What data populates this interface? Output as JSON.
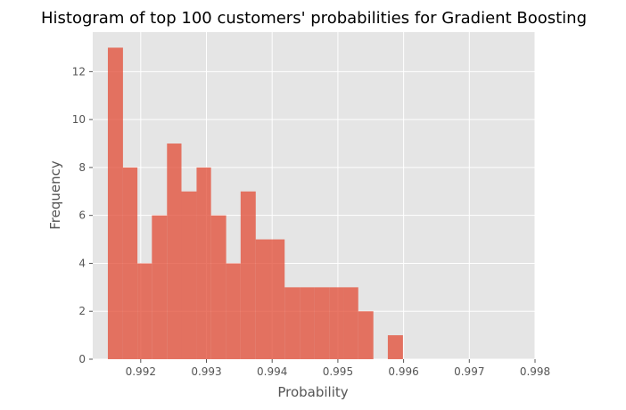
{
  "chart_data": {
    "type": "bar",
    "title": "Histogram of top 100 customers' probabilities for Gradient Boosting",
    "xlabel": "Probability",
    "ylabel": "Frequency",
    "bin_edges": [
      0.9915,
      0.99173,
      0.99195,
      0.99217,
      0.9924,
      0.99262,
      0.99285,
      0.99307,
      0.9933,
      0.99352,
      0.99375,
      0.99397,
      0.99419,
      0.99442,
      0.99464,
      0.99487,
      0.99509,
      0.99531,
      0.99554,
      0.99576,
      0.99599,
      0.99621,
      0.99643,
      0.99666,
      0.99688,
      0.99711,
      0.99733,
      0.99755,
      0.99778
    ],
    "values": [
      13,
      8,
      4,
      6,
      9,
      7,
      8,
      6,
      4,
      7,
      5,
      5,
      3,
      3,
      3,
      3,
      3,
      2,
      0,
      1,
      0,
      0,
      0,
      0,
      0,
      0,
      0,
      0
    ],
    "xlim": [
      0.99127,
      0.998
    ],
    "ylim": [
      0,
      13.65
    ],
    "xticks": [
      0.992,
      0.993,
      0.994,
      0.995,
      0.996,
      0.997,
      0.998
    ],
    "xtick_labels": [
      "0.992",
      "0.993",
      "0.994",
      "0.995",
      "0.996",
      "0.997",
      "0.998"
    ],
    "yticks": [
      0,
      2,
      4,
      6,
      8,
      10,
      12
    ],
    "ytick_labels": [
      "0",
      "2",
      "4",
      "6",
      "8",
      "10",
      "12"
    ],
    "grid": true,
    "colors": {
      "bar": "#E24A33",
      "background": "#E5E5E5",
      "grid": "#FFFFFF"
    }
  }
}
